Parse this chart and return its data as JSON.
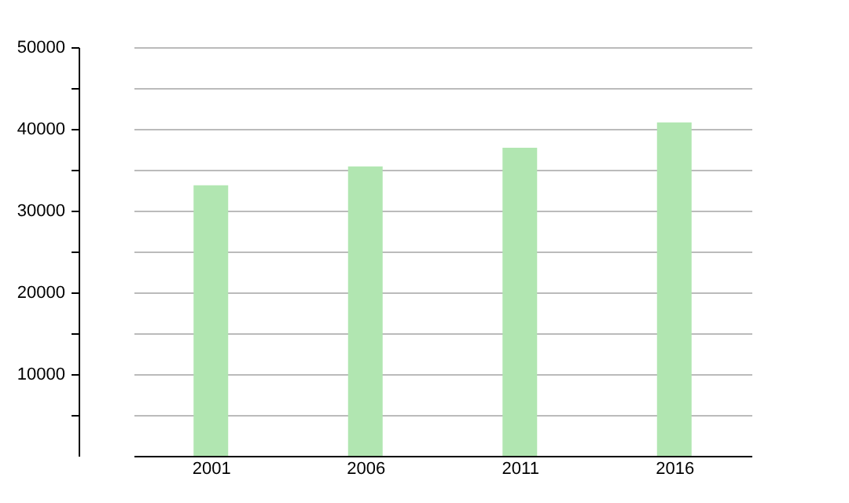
{
  "chart_data": {
    "type": "bar",
    "categories": [
      "2001",
      "2006",
      "2011",
      "2016"
    ],
    "values": [
      33100,
      35400,
      37700,
      40800
    ],
    "color": "#b1e6b1",
    "ylim": [
      0,
      50000
    ],
    "yticks": [
      {
        "value": 5000,
        "label": null
      },
      10000,
      {
        "value": 15000,
        "label": null
      },
      20000,
      {
        "value": 25000,
        "label": null
      },
      30000,
      {
        "value": 35000,
        "label": null
      },
      40000,
      {
        "value": 45000,
        "label": null
      },
      50000
    ],
    "grid": "y"
  }
}
